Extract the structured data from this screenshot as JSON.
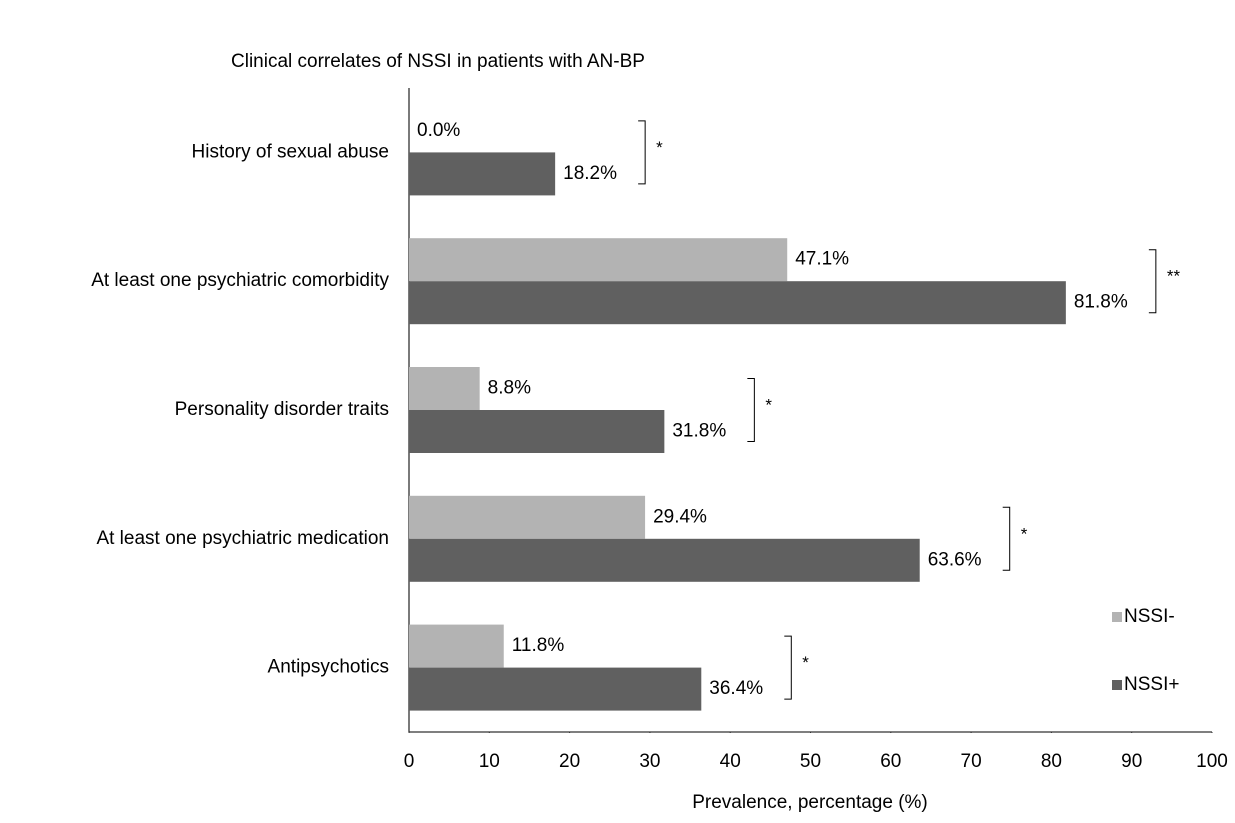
{
  "chart_data": {
    "type": "hbar",
    "title": "Clinical correlates of NSSI in patients with AN-BP",
    "x_label": "Prevalence, percentage (%)",
    "categories": [
      "History of sexual abuse",
      "At least one psychiatric comorbidity",
      "Personality disorder traits",
      "At least one psychiatric medication",
      "Antipsychotics"
    ],
    "series": [
      {
        "name": "NSSI-",
        "color": "#b3b3b3",
        "values": [
          0.0,
          47.1,
          8.8,
          29.4,
          11.8
        ],
        "value_labels": [
          "0.0%",
          "47.1%",
          "8.8%",
          "29.4%",
          "11.8%"
        ]
      },
      {
        "name": "NSSI+",
        "color": "#606060",
        "values": [
          18.2,
          81.8,
          31.8,
          63.6,
          36.4
        ],
        "value_labels": [
          "18.2%",
          "81.8%",
          "31.8%",
          "63.6%",
          "36.4%"
        ]
      }
    ],
    "significance": [
      "*",
      "**",
      "*",
      "*",
      "*"
    ],
    "xlim": [
      0,
      100
    ],
    "xticks": [
      0,
      10,
      20,
      30,
      40,
      50,
      60,
      70,
      80,
      90,
      100
    ],
    "grid": false,
    "legend": "right"
  }
}
